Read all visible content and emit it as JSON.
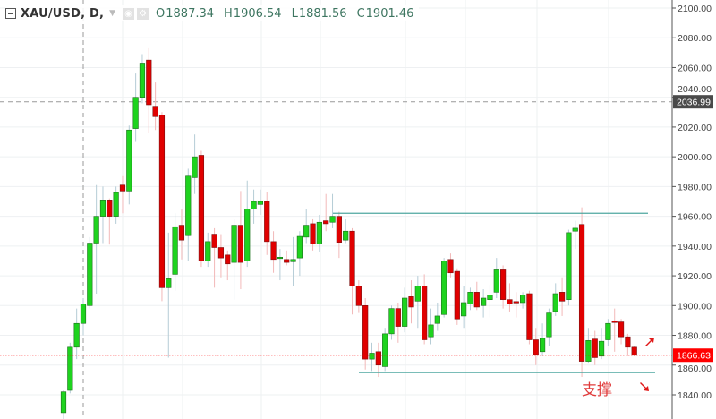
{
  "legend": {
    "symbol": "XAU/USD, D,",
    "open_label": "O",
    "open": "1887.34",
    "high_label": "H",
    "high": "1906.54",
    "low_label": "L",
    "low": "1881.56",
    "close_label": "C",
    "close": "1901.46",
    "icons": [
      "collapse-icon",
      "dropdown-caret-icon",
      "eye-icon",
      "gear-icon"
    ]
  },
  "chart_data": {
    "type": "candlestick",
    "symbol": "XAU/USD",
    "interval": "D",
    "ylim": [
      1830,
      2103
    ],
    "y_ticks": [
      "2100.00",
      "2080.00",
      "2060.00",
      "2040.00",
      "2020.00",
      "2000.00",
      "1980.00",
      "1960.00",
      "1940.00",
      "1920.00",
      "1900.00",
      "1880.00",
      "1860.00",
      "1840.00"
    ],
    "grid": true,
    "colors": {
      "up": "#1ed31e",
      "down": "#e00000",
      "line": "#4fa7a0",
      "last_price": "#ff0000",
      "crosshair_label": "#4a4a4a"
    },
    "ohlc": [
      [
        1828,
        1843,
        1820,
        1842
      ],
      [
        1843,
        1875,
        1841,
        1872
      ],
      [
        1872,
        1898,
        1864,
        1888
      ],
      [
        1888,
        1905,
        1880,
        1901
      ],
      [
        1900,
        1946,
        1898,
        1942
      ],
      [
        1942,
        1981,
        1908,
        1960
      ],
      [
        1960,
        1980,
        1942,
        1971
      ],
      [
        1971,
        1972,
        1941,
        1960
      ],
      [
        1960,
        1980,
        1955,
        1976
      ],
      [
        1981,
        1987,
        1962,
        1977
      ],
      [
        1977,
        2021,
        1968,
        2018
      ],
      [
        2019,
        2056,
        2010,
        2040
      ],
      [
        2040,
        2069,
        2036,
        2063
      ],
      [
        2065,
        2073,
        2016,
        2035
      ],
      [
        2034,
        2050,
        2018,
        2027
      ],
      [
        2028,
        2030,
        1903,
        1912
      ],
      [
        1912,
        1949,
        1865,
        1918
      ],
      [
        1921,
        1962,
        1910,
        1953
      ],
      [
        1954,
        1965,
        1931,
        1944
      ],
      [
        1947,
        1992,
        1930,
        1987
      ],
      [
        1986,
        2015,
        1975,
        2000
      ],
      [
        2001,
        2004,
        1926,
        1930
      ],
      [
        1930,
        1949,
        1926,
        1943
      ],
      [
        1948,
        1952,
        1912,
        1939
      ],
      [
        1939,
        1948,
        1919,
        1932
      ],
      [
        1934,
        1937,
        1917,
        1928
      ],
      [
        1929,
        1958,
        1904,
        1954
      ],
      [
        1954,
        1977,
        1911,
        1929
      ],
      [
        1930,
        1984,
        1926,
        1965
      ],
      [
        1965,
        1978,
        1955,
        1970
      ],
      [
        1968,
        1978,
        1961,
        1970
      ],
      [
        1970,
        1976,
        1934,
        1943
      ],
      [
        1943,
        1950,
        1922,
        1931
      ],
      [
        1932,
        1938,
        1917,
        1932.5
      ],
      [
        1931,
        1937,
        1927,
        1929
      ],
      [
        1929.5,
        1946,
        1913,
        1931
      ],
      [
        1932,
        1950,
        1920,
        1946.5
      ],
      [
        1946,
        1965,
        1942,
        1954
      ],
      [
        1955,
        1958,
        1937,
        1941.5
      ],
      [
        1941.5,
        1961,
        1936,
        1956
      ],
      [
        1957,
        1975,
        1950,
        1955
      ],
      [
        1956,
        1975,
        1952,
        1960
      ],
      [
        1960,
        1963,
        1932,
        1942.5
      ],
      [
        1944,
        1958,
        1942,
        1950
      ],
      [
        1950,
        1952,
        1894,
        1913
      ],
      [
        1913,
        1917,
        1895,
        1900
      ],
      [
        1900,
        1905,
        1857,
        1864
      ],
      [
        1864,
        1875,
        1856,
        1868
      ],
      [
        1869,
        1875,
        1852,
        1860
      ],
      [
        1859,
        1885,
        1856,
        1881
      ],
      [
        1881,
        1900,
        1877,
        1898
      ],
      [
        1898,
        1902,
        1875,
        1886
      ],
      [
        1886,
        1912,
        1882,
        1905
      ],
      [
        1906,
        1917,
        1888,
        1899
      ],
      [
        1903,
        1920,
        1885,
        1913
      ],
      [
        1913,
        1921,
        1874,
        1877
      ],
      [
        1879,
        1898,
        1874,
        1887
      ],
      [
        1888,
        1902,
        1883,
        1893
      ],
      [
        1894,
        1932,
        1892,
        1930
      ],
      [
        1931,
        1935,
        1919,
        1922
      ],
      [
        1923,
        1925,
        1887,
        1891
      ],
      [
        1893,
        1913,
        1885,
        1902
      ],
      [
        1901,
        1912,
        1897,
        1909
      ],
      [
        1909,
        1916,
        1897,
        1899
      ],
      [
        1900,
        1911,
        1892,
        1905
      ],
      [
        1904,
        1914,
        1892,
        1907
      ],
      [
        1909,
        1932,
        1905,
        1924
      ],
      [
        1924,
        1927,
        1898,
        1904
      ],
      [
        1904,
        1915,
        1896,
        1901
      ],
      [
        1902.7,
        1909,
        1892,
        1902.1
      ],
      [
        1902,
        1909,
        1898,
        1907
      ],
      [
        1908,
        1910,
        1874,
        1877
      ],
      [
        1877,
        1885,
        1860,
        1867
      ],
      [
        1869,
        1888,
        1866,
        1878
      ],
      [
        1879,
        1898,
        1873,
        1895
      ],
      [
        1896,
        1915,
        1893,
        1908
      ],
      [
        1909,
        1919,
        1893,
        1903
      ],
      [
        1904,
        1951,
        1900,
        1949
      ],
      [
        1950,
        1957,
        1938,
        1952
      ],
      [
        1954.5,
        1966,
        1852,
        1862.5
      ],
      [
        1862.5,
        1885,
        1861,
        1876.5
      ],
      [
        1877.5,
        1883,
        1860,
        1865
      ],
      [
        1866,
        1885,
        1864,
        1876
      ],
      [
        1877,
        1891,
        1873,
        1888
      ],
      [
        1889.5,
        1898,
        1869,
        1889
      ],
      [
        1889,
        1891,
        1874,
        1879
      ],
      [
        1879,
        1881,
        1866,
        1872
      ],
      [
        1872,
        1873,
        1866,
        1866.6
      ]
    ],
    "horizontal_lines": [
      {
        "name": "resistance",
        "price": 1962
      },
      {
        "name": "support",
        "price": 1855
      }
    ],
    "last_price": "1866.63",
    "crosshair_price": "2036.99",
    "annotation": "支撑"
  }
}
